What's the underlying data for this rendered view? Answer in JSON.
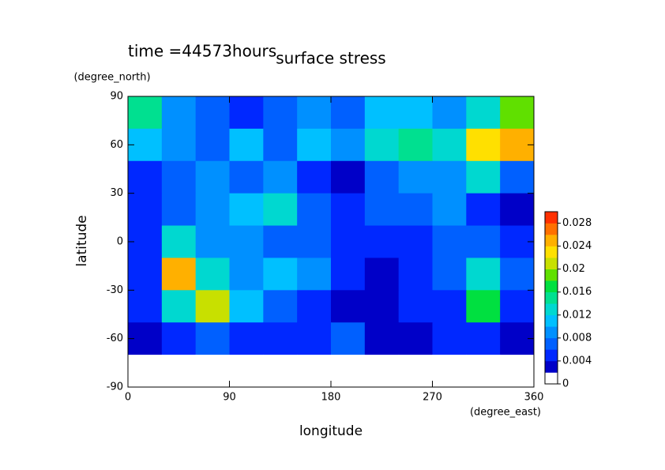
{
  "chart_data": {
    "type": "heatmap",
    "title": "surface stress",
    "subtitle": "time =44573hours",
    "x_label": "longitude",
    "x_unit": "(degree_east)",
    "y_label": "latitude",
    "y_unit": "(degree_north)",
    "lon": [
      15,
      45,
      75,
      105,
      135,
      165,
      195,
      225,
      255,
      285,
      315,
      345
    ],
    "lat": [
      80,
      60,
      40,
      20,
      0,
      -20,
      -40,
      -60,
      -80
    ],
    "z": [
      [
        0.014,
        0.008,
        0.006,
        0.004,
        0.006,
        0.008,
        0.006,
        0.01,
        0.01,
        0.008,
        0.012,
        0.018
      ],
      [
        0.01,
        0.008,
        0.006,
        0.01,
        0.006,
        0.01,
        0.008,
        0.012,
        0.014,
        0.012,
        0.022,
        0.024
      ],
      [
        0.004,
        0.006,
        0.008,
        0.006,
        0.008,
        0.004,
        0.002,
        0.006,
        0.008,
        0.008,
        0.012,
        0.006
      ],
      [
        0.004,
        0.006,
        0.008,
        0.01,
        0.012,
        0.006,
        0.004,
        0.006,
        0.006,
        0.008,
        0.004,
        0.002
      ],
      [
        0.004,
        0.012,
        0.008,
        0.008,
        0.006,
        0.006,
        0.004,
        0.004,
        0.004,
        0.006,
        0.006,
        0.004
      ],
      [
        0.004,
        0.024,
        0.012,
        0.008,
        0.01,
        0.008,
        0.004,
        0.002,
        0.004,
        0.006,
        0.012,
        0.006
      ],
      [
        0.004,
        0.012,
        0.02,
        0.01,
        0.006,
        0.004,
        0.002,
        0.002,
        0.004,
        0.004,
        0.016,
        0.004
      ],
      [
        0.002,
        0.004,
        0.006,
        0.004,
        0.004,
        0.004,
        0.006,
        0.002,
        0.002,
        0.004,
        0.004,
        0.002
      ],
      [
        0,
        0,
        0,
        0,
        0,
        0,
        0,
        0,
        0,
        0,
        0,
        0
      ]
    ],
    "levels": [
      0,
      0.002,
      0.004,
      0.006,
      0.008,
      0.01,
      0.012,
      0.014,
      0.016,
      0.018,
      0.02,
      0.022,
      0.024,
      0.026,
      0.028,
      0.03
    ],
    "colors": [
      "#ffffff",
      "#0000c8",
      "#0028ff",
      "#0060ff",
      "#0090ff",
      "#00c0ff",
      "#00d8d0",
      "#00e090",
      "#00e040",
      "#60e000",
      "#c8e000",
      "#ffe000",
      "#ffb000",
      "#ff7000",
      "#ff3000"
    ],
    "xlim": [
      0,
      360
    ],
    "xticks": [
      0,
      90,
      180,
      270,
      360
    ],
    "ylim": [
      -90,
      90
    ],
    "yticks": [
      -90,
      -60,
      -30,
      0,
      30,
      60,
      90
    ],
    "cticks": [
      0,
      0.004,
      0.008,
      0.012,
      0.016,
      0.02,
      0.024,
      0.028
    ]
  }
}
